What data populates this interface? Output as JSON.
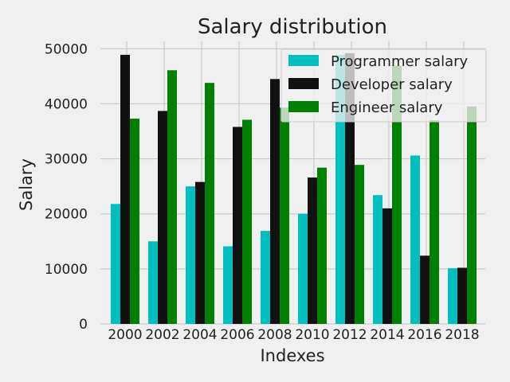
{
  "chart_data": {
    "type": "bar",
    "title": "Salary distribution",
    "xlabel": "Indexes",
    "ylabel": "Salary",
    "categories": [
      "2000",
      "2002",
      "2004",
      "2006",
      "2008",
      "2010",
      "2012",
      "2014",
      "2016",
      "2018"
    ],
    "series": [
      {
        "name": "Programmer salary",
        "color": "#00bfbf",
        "values": [
          21800,
          15000,
          25000,
          14100,
          16900,
          20000,
          48900,
          23400,
          30600,
          10100
        ]
      },
      {
        "name": "Developer salary",
        "color": "#111111",
        "values": [
          48900,
          38700,
          25800,
          35800,
          44500,
          26600,
          49200,
          21000,
          12400,
          10200
        ]
      },
      {
        "name": "Engineer salary",
        "color": "#008000",
        "values": [
          37300,
          46100,
          43800,
          37100,
          39300,
          28400,
          28900,
          46900,
          37000,
          39500
        ]
      }
    ],
    "ylim": [
      0,
      52500
    ],
    "yticks": [
      0,
      10000,
      20000,
      30000,
      40000,
      50000
    ],
    "grid": true,
    "legend_position": "top-right"
  }
}
